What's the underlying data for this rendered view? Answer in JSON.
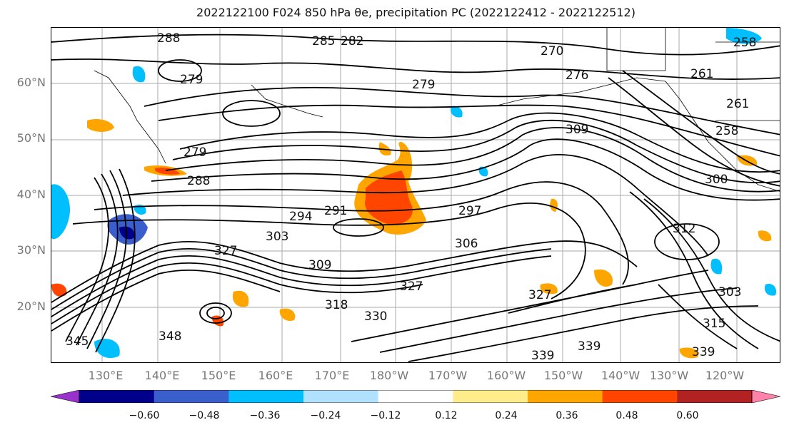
{
  "title": "2022122100 F024 850 hPa θe, precipitation PC (2022122412 - 2022122512)",
  "latitude_labels": [
    "60°N",
    "50°N",
    "40°N",
    "30°N",
    "20°N"
  ],
  "longitude_labels": [
    "130°E",
    "140°E",
    "150°E",
    "160°E",
    "170°E",
    "180°W",
    "170°W",
    "160°W",
    "150°W",
    "140°W",
    "130°W",
    "120°W"
  ],
  "contour_labels": [
    "288",
    "285",
    "282",
    "270",
    "258",
    "279",
    "279",
    "276",
    "261",
    "261",
    "258",
    "279",
    "288",
    "294",
    "291",
    "297",
    "309",
    "300",
    "312",
    "303",
    "309",
    "306",
    "327",
    "327",
    "318",
    "330",
    "327",
    "303",
    "315",
    "348",
    "339",
    "339",
    "339",
    "345"
  ],
  "colorbar": {
    "ticks": [
      "−0.60",
      "−0.48",
      "−0.36",
      "−0.24",
      "−0.12",
      "0.12",
      "0.24",
      "0.36",
      "0.48",
      "0.60"
    ],
    "colors": [
      "#9932CC",
      "#00008B",
      "#3A5FCD",
      "#00BFFF",
      "#B0E2FF",
      "#FFFFFF",
      "#FFEC8B",
      "#FFA500",
      "#FF4500",
      "#B22222",
      "#FF82AB"
    ]
  }
}
